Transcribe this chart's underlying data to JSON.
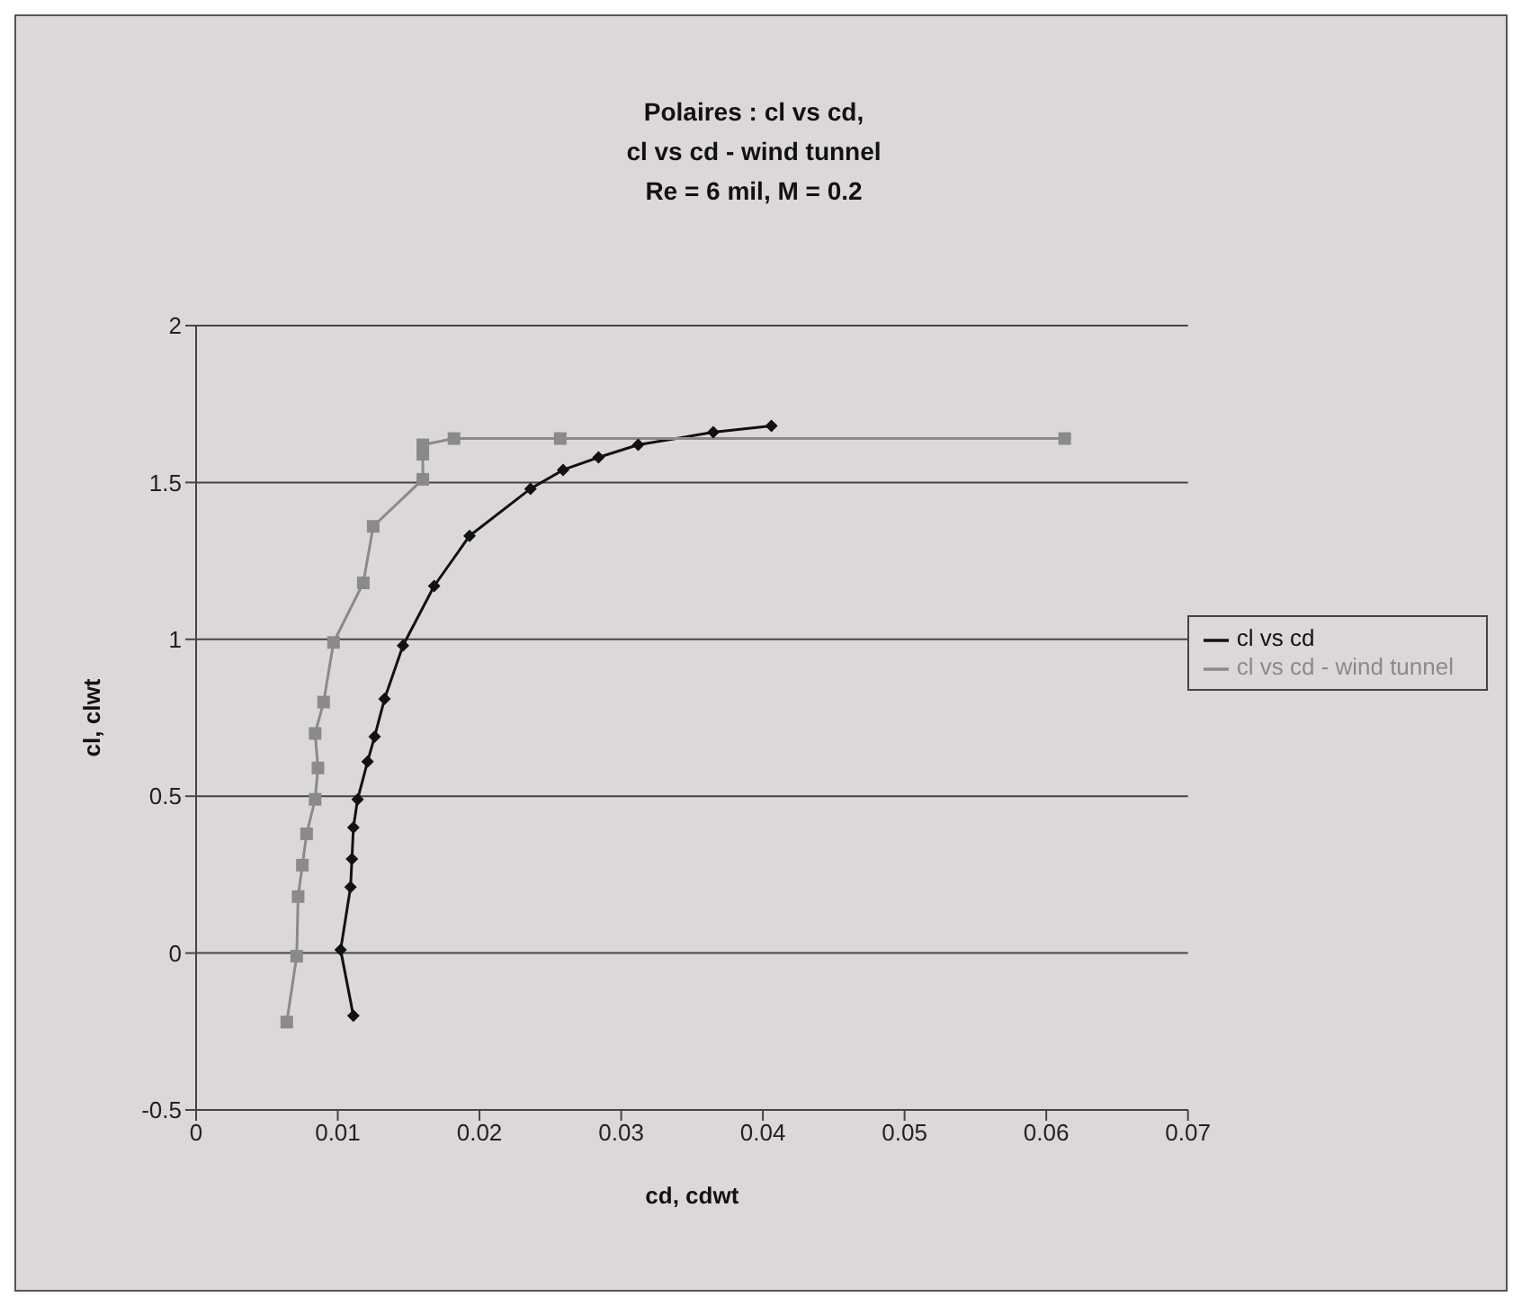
{
  "chart_data": {
    "type": "line",
    "title": "Polaires : cl vs cd,\ncl vs cd - wind tunnel\nRe = 6 mil, M = 0.2",
    "xlabel": "cd, cdwt",
    "ylabel": "cl, clwt",
    "xlim": [
      0,
      0.07
    ],
    "xticks": [
      0,
      0.01,
      0.02,
      0.03,
      0.04,
      0.05,
      0.06,
      0.07
    ],
    "ylim": [
      -0.5,
      2
    ],
    "yticks": [
      -0.5,
      0,
      0.5,
      1,
      1.5,
      2
    ],
    "grid": "y",
    "legend": "right",
    "line_style": "solid",
    "series": [
      {
        "name": "cl vs cd",
        "color": "#111111",
        "marker": "diamond",
        "x": [
          0.0111,
          0.0102,
          0.0109,
          0.011,
          0.0111,
          0.0114,
          0.0121,
          0.0126,
          0.0133,
          0.0146,
          0.0168,
          0.0193,
          0.0236,
          0.0259,
          0.0284,
          0.0312,
          0.0365,
          0.0406
        ],
        "values": [
          -0.2,
          0.01,
          0.21,
          0.3,
          0.4,
          0.49,
          0.61,
          0.69,
          0.81,
          0.98,
          1.17,
          1.33,
          1.48,
          1.54,
          1.58,
          1.62,
          1.66,
          1.68
        ]
      },
      {
        "name": "cl vs cd - wind tunnel",
        "color": "#8a8a8a",
        "marker": "square",
        "x": [
          0.0064,
          0.0071,
          0.0072,
          0.0075,
          0.0078,
          0.0084,
          0.0086,
          0.0084,
          0.009,
          0.0097,
          0.0118,
          0.0125,
          0.016,
          0.016,
          0.016,
          0.0182,
          0.0257,
          0.0613
        ],
        "values": [
          -0.22,
          -0.01,
          0.18,
          0.28,
          0.38,
          0.49,
          0.59,
          0.7,
          0.8,
          0.99,
          1.18,
          1.36,
          1.51,
          1.59,
          1.62,
          1.64,
          1.64,
          1.64
        ]
      }
    ]
  }
}
